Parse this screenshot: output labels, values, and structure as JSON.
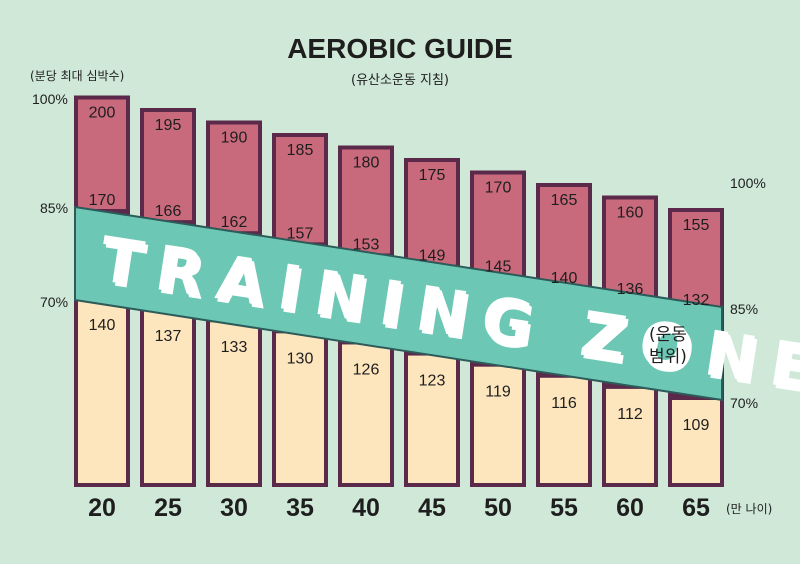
{
  "chart_data": {
    "type": "bar",
    "title": "AEROBIC GUIDE",
    "subtitle": "(유산소운동 지침)",
    "ylabel": "(분당 최대 심박수)",
    "xlabel": "(만 나이)",
    "categories": [
      "20",
      "25",
      "30",
      "35",
      "40",
      "45",
      "50",
      "55",
      "60",
      "65"
    ],
    "series": [
      {
        "values": [
          200,
          195,
          190,
          185,
          180,
          175,
          170,
          165,
          160,
          155
        ]
      },
      {
        "values": [
          170,
          166,
          162,
          157,
          153,
          149,
          145,
          140,
          136,
          132
        ]
      },
      {
        "values": [
          140,
          137,
          133,
          130,
          126,
          123,
          119,
          116,
          112,
          109
        ]
      }
    ],
    "left_pct_labels": {
      "p100": "100%",
      "p85": "85%",
      "p70": "70%"
    },
    "right_pct_labels": {
      "p100": "100%",
      "p85": "85%",
      "p70": "70%"
    },
    "training_zone": {
      "label": "TRAINING ZONE",
      "sub_line1": "(운동",
      "sub_line2": "범위)"
    },
    "colors": {
      "background": "#cfe8d8",
      "bar_top": "#c96a7c",
      "bar_bottom": "#fde5bd",
      "bar_outline": "#5b2a4a",
      "zone_band": "#6cc8b4",
      "zone_outline": "#2c5b5a",
      "zone_text_shadow": "#1f3a3a"
    }
  }
}
